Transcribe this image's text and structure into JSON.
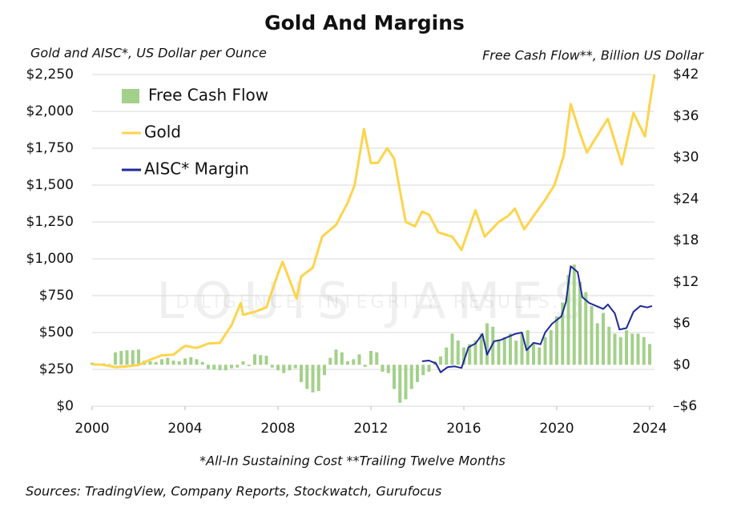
{
  "chart_data": {
    "type": "combo",
    "title": "Gold And Margins",
    "y_label": "Gold and AISC*, US Dollar per Ounce",
    "y2_label": "Free Cash Flow**, Billion US Dollar",
    "footnote": "*All-In Sustaining Cost **Trailing Twelve Months",
    "sources": "Sources: TradingView, Company Reports, Stockwatch, Gurufocus",
    "watermark": "LOUIS JAMES",
    "watermark_tagline": "DILIGENCE. INTEGRITY. RESULTS.",
    "xlim": [
      2000,
      2024.2
    ],
    "xticks": [
      2000,
      2004,
      2008,
      2012,
      2016,
      2020,
      2024
    ],
    "ylim": [
      0,
      2250
    ],
    "yticks": [
      {
        "value": 0,
        "label": "$0"
      },
      {
        "value": 250,
        "label": "$250"
      },
      {
        "value": 500,
        "label": "$500"
      },
      {
        "value": 750,
        "label": "$750"
      },
      {
        "value": 1000,
        "label": "$1,000"
      },
      {
        "value": 1250,
        "label": "$1,250"
      },
      {
        "value": 1500,
        "label": "$1,500"
      },
      {
        "value": 1750,
        "label": "$1,750"
      },
      {
        "value": 2000,
        "label": "$2,000"
      },
      {
        "value": 2250,
        "label": "$2,250"
      }
    ],
    "y2lim": [
      -6,
      42
    ],
    "y2ticks": [
      {
        "value": -6,
        "label": "–$6"
      },
      {
        "value": 0,
        "label": "$0"
      },
      {
        "value": 6,
        "label": "$6"
      },
      {
        "value": 12,
        "label": "$12"
      },
      {
        "value": 18,
        "label": "$18"
      },
      {
        "value": 24,
        "label": "$24"
      },
      {
        "value": 30,
        "label": "$30"
      },
      {
        "value": 36,
        "label": "$36"
      },
      {
        "value": 42,
        "label": "$42"
      }
    ],
    "grid": true,
    "legend": "top-left",
    "series": [
      {
        "name": "Free Cash Flow",
        "type": "bar",
        "axis": "y2",
        "color": "#a3d08a",
        "x": [
          2000,
          2000.25,
          2000.5,
          2000.75,
          2001,
          2001.25,
          2001.5,
          2001.75,
          2002,
          2002.25,
          2002.5,
          2002.75,
          2003,
          2003.25,
          2003.5,
          2003.75,
          2004,
          2004.25,
          2004.5,
          2004.75,
          2005,
          2005.25,
          2005.5,
          2005.75,
          2006,
          2006.25,
          2006.5,
          2006.75,
          2007,
          2007.25,
          2007.5,
          2007.75,
          2008,
          2008.25,
          2008.5,
          2008.75,
          2009,
          2009.25,
          2009.5,
          2009.75,
          2010,
          2010.25,
          2010.5,
          2010.75,
          2011,
          2011.25,
          2011.5,
          2011.75,
          2012,
          2012.25,
          2012.5,
          2012.75,
          2013,
          2013.25,
          2013.5,
          2013.75,
          2014,
          2014.25,
          2014.5,
          2014.75,
          2015,
          2015.25,
          2015.5,
          2015.75,
          2016,
          2016.25,
          2016.5,
          2016.75,
          2017,
          2017.25,
          2017.5,
          2017.75,
          2018,
          2018.25,
          2018.5,
          2018.75,
          2019,
          2019.25,
          2019.5,
          2019.75,
          2020,
          2020.25,
          2020.5,
          2020.75,
          2021,
          2021.25,
          2021.5,
          2021.75,
          2022,
          2022.25,
          2022.5,
          2022.75,
          2023,
          2023.25,
          2023.5,
          2023.75,
          2024
        ],
        "values": [
          0.3,
          0.2,
          0.2,
          0.1,
          1.8,
          2.0,
          2.1,
          2.1,
          2.2,
          0.6,
          0.5,
          0.4,
          0.8,
          1.0,
          0.6,
          0.5,
          0.9,
          1.1,
          0.8,
          0.4,
          -0.6,
          -0.7,
          -0.8,
          -0.8,
          -0.5,
          -0.4,
          0.5,
          -0.2,
          1.5,
          1.4,
          1.3,
          -0.4,
          -0.8,
          -1.2,
          -0.8,
          -0.5,
          -2.5,
          -3.5,
          -4.0,
          -3.8,
          -1.5,
          1.0,
          2.2,
          1.8,
          0.5,
          0.8,
          1.5,
          -0.3,
          2.0,
          1.8,
          -1.0,
          -1.2,
          -3.5,
          -5.5,
          -5.0,
          -3.5,
          -2.5,
          -1.5,
          -1.0,
          0.5,
          1.2,
          2.5,
          4.5,
          3.5,
          2.5,
          3.0,
          3.5,
          4.5,
          6.0,
          5.5,
          3.5,
          4.0,
          4.5,
          3.5,
          4.5,
          5.0,
          3.0,
          2.5,
          4.0,
          5.0,
          7.0,
          9.0,
          13.0,
          14.5,
          12.0,
          10.5,
          8.5,
          6.0,
          7.5,
          5.5,
          4.5,
          4.0,
          5.0,
          4.5,
          4.5,
          4.0,
          3.0
        ]
      },
      {
        "name": "Gold",
        "type": "line",
        "axis": "y",
        "color": "#fdd44c",
        "x": [
          2000,
          2000.5,
          2001,
          2001.5,
          2002,
          2002.5,
          2003,
          2003.5,
          2004,
          2004.5,
          2005,
          2005.5,
          2006,
          2006.4,
          2006.5,
          2007,
          2007.5,
          2008,
          2008.2,
          2008.8,
          2009,
          2009.5,
          2009.9,
          2010.5,
          2011,
          2011.3,
          2011.7,
          2012,
          2012.3,
          2012.7,
          2013,
          2013.3,
          2013.5,
          2013.9,
          2014.2,
          2014.5,
          2014.9,
          2015.5,
          2015.9,
          2016.5,
          2016.9,
          2017.5,
          2017.9,
          2018.2,
          2018.6,
          2019,
          2019.5,
          2019.9,
          2020.3,
          2020.6,
          2021,
          2021.3,
          2021.6,
          2022.2,
          2022.8,
          2023.3,
          2023.8,
          2024,
          2024.2
        ],
        "values": [
          285,
          280,
          265,
          270,
          280,
          315,
          345,
          350,
          410,
          395,
          425,
          430,
          550,
          700,
          620,
          640,
          670,
          900,
          980,
          730,
          880,
          940,
          1150,
          1230,
          1380,
          1500,
          1880,
          1650,
          1650,
          1750,
          1680,
          1420,
          1250,
          1220,
          1320,
          1300,
          1180,
          1150,
          1060,
          1330,
          1150,
          1250,
          1290,
          1340,
          1200,
          1290,
          1400,
          1500,
          1700,
          2050,
          1850,
          1720,
          1800,
          1950,
          1640,
          1990,
          1830,
          2050,
          2250
        ]
      },
      {
        "name": "AISC* Margin",
        "type": "line",
        "axis": "y",
        "color": "#1c2a9a",
        "x": [
          2014.2,
          2014.5,
          2014.8,
          2015,
          2015.3,
          2015.6,
          2015.9,
          2016.2,
          2016.5,
          2016.8,
          2017,
          2017.3,
          2017.6,
          2017.9,
          2018.2,
          2018.5,
          2018.7,
          2019,
          2019.3,
          2019.5,
          2019.8,
          2020.2,
          2020.4,
          2020.6,
          2020.9,
          2021.1,
          2021.4,
          2021.7,
          2022,
          2022.2,
          2022.5,
          2022.7,
          2023,
          2023.3,
          2023.6,
          2023.9,
          2024.1
        ],
        "values": [
          305,
          310,
          290,
          230,
          265,
          270,
          260,
          400,
          425,
          490,
          350,
          440,
          450,
          470,
          490,
          500,
          380,
          430,
          420,
          500,
          560,
          610,
          710,
          950,
          910,
          740,
          700,
          680,
          660,
          690,
          630,
          520,
          530,
          640,
          680,
          670,
          680
        ]
      }
    ]
  }
}
